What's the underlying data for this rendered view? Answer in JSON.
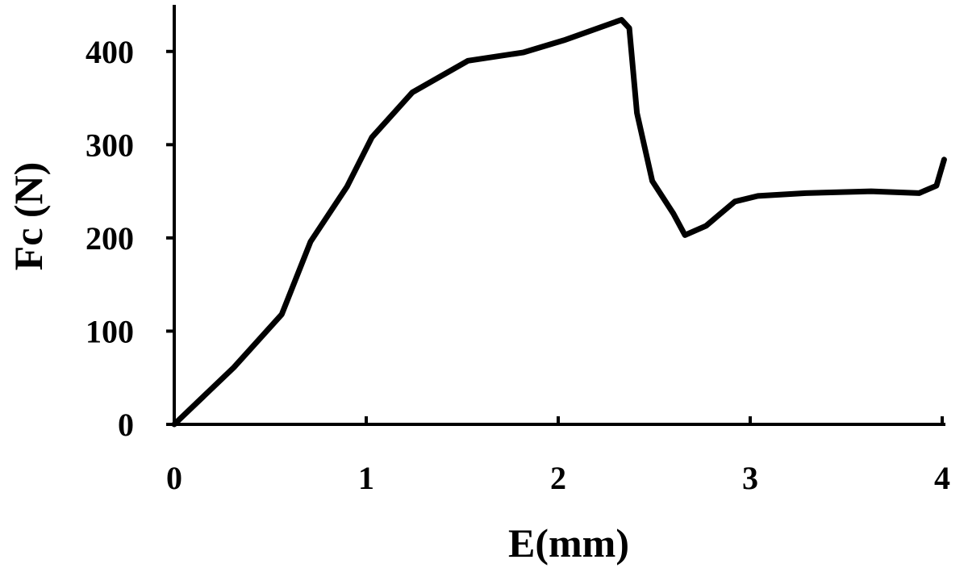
{
  "chart_data": {
    "type": "line",
    "x_label": "E(mm)",
    "y_label": "Fc (N)",
    "x": [
      0,
      0.31,
      0.56,
      0.71,
      0.9,
      1.03,
      1.24,
      1.53,
      1.82,
      2.03,
      2.33,
      2.37,
      2.41,
      2.49,
      2.6,
      2.66,
      2.77,
      2.92,
      3.04,
      3.29,
      3.63,
      3.88,
      3.97,
      4.01
    ],
    "values": [
      0,
      61,
      118,
      196,
      255,
      308,
      356,
      390,
      399,
      412,
      434,
      425,
      334,
      261,
      226,
      203,
      213,
      239,
      245,
      248,
      250,
      248,
      256,
      284
    ],
    "color": "#000000",
    "xlim": [
      0,
      4
    ],
    "xticks": [
      0,
      1,
      2,
      3,
      4
    ],
    "ylim": [
      0,
      450
    ],
    "yticks": [
      0,
      100,
      200,
      300,
      400
    ]
  }
}
